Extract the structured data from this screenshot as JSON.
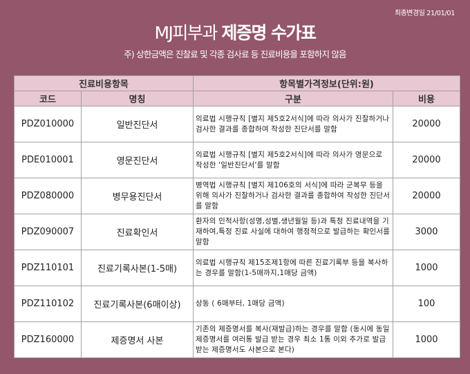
{
  "header": {
    "updated": "최종변경일 21/01/01",
    "title_light": "MJ피부과",
    "title_bold": "제증명 수가표",
    "note": "주) 상한금액은 진찰료 및 각종 검사료 등 진료비용을 포함하지 않음"
  },
  "colors": {
    "background": "#93566a",
    "header_bg": "#e8c8d3"
  },
  "table": {
    "group_headers": [
      "진료비용항목",
      "항목별가격정보(단위:원)"
    ],
    "columns": [
      "코드",
      "명칭",
      "구분",
      "비용"
    ],
    "rows": [
      {
        "code": "PDZ010000",
        "name": "일반진단서",
        "desc": "의료법 시행규칙 [별지 제5호2서식]에 따라 의사가 진찰하거나 검사한 결과를 종합하여 작성한 진단서를 말함",
        "cost": "20000"
      },
      {
        "code": "PDE010001",
        "name": "영문진단서",
        "desc": "의료법 시행규칙 [별지 제5호2서식]에 따라 의사가 영문으로 작성한 '일반진단서'를 말함",
        "cost": "20000"
      },
      {
        "code": "PDZ080000",
        "name": "병무용진단서",
        "desc": "병역법 시행규칙 [별지 제106호의 서식]에 따라 군복무 등을 위해 의사가 진찰하거나 검사한 결과를 종합하여 작성한 진단서를 말함",
        "cost": "20000"
      },
      {
        "code": "PDZ090007",
        "name": "진료확인서",
        "desc": "환자의 인적사항(성명,성별,생년월일 등)과 특정 진료내역을 기재하여,특정 진료 사실에 대하여 행정적으로 발급하는 확인서를 말함",
        "cost": "3000"
      },
      {
        "code": "PDZ110101",
        "name": "진료기록사본(1-5매)",
        "desc": "의료법 시행규칙 제15조제1항에 따른 진료기록부 등을 복사하는 경우를 말함(1-5매까지,1매당 금액)",
        "cost": "1000"
      },
      {
        "code": "PDZ110102",
        "name": "진료기록사본(6매이상)",
        "desc": "상동 ( 6매부터, 1매당 금액)",
        "cost": "100"
      },
      {
        "code": "PDZ160000",
        "name": "제증명서 사본",
        "desc": "기존의 제증명서를 복사(재발급)하는 경우를 말함 (동시에 동일 제증명서를 여러통 발급 받는 경우 최소 1통 이외 추가로 발급 받는 제증명서도 사본으로 본다)",
        "cost": "1000"
      }
    ]
  }
}
